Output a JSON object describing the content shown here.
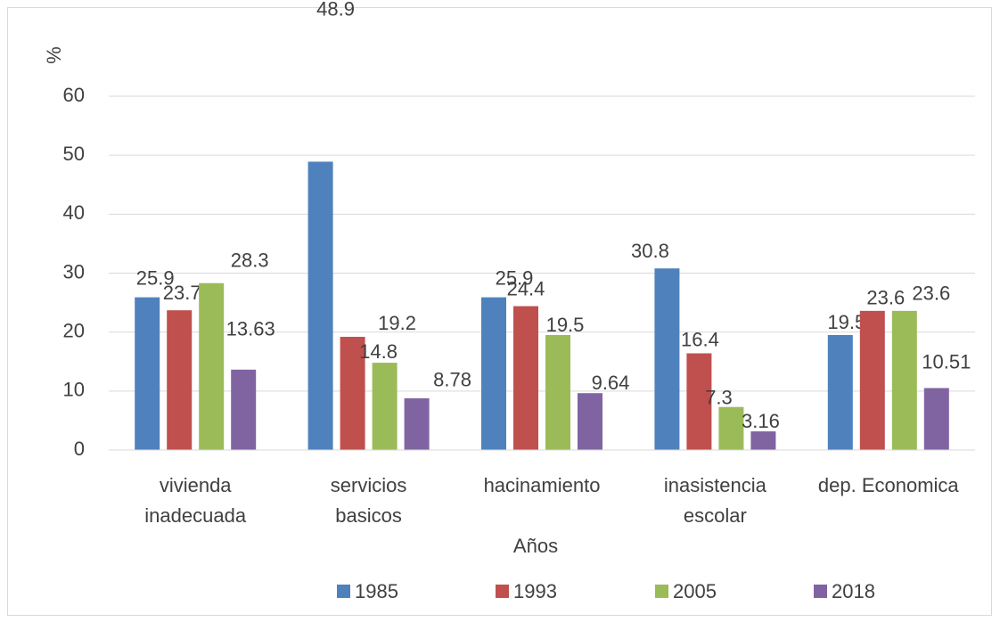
{
  "chart_data": {
    "type": "bar",
    "y_label": "%",
    "x_label": "Años",
    "categories": [
      "vivienda\ninadecuada",
      "servicios\nbasicos",
      "hacinamiento",
      "inasistencia\nescolar",
      "dep. Economica"
    ],
    "series": [
      {
        "name": "1985",
        "color": "#4f81bd",
        "values": [
          25.9,
          48.9,
          25.9,
          30.8,
          19.5
        ]
      },
      {
        "name": "1993",
        "color": "#c0504d",
        "values": [
          23.7,
          19.2,
          24.4,
          16.4,
          23.6
        ]
      },
      {
        "name": "2005",
        "color": "#9bbb59",
        "values": [
          28.3,
          14.8,
          19.5,
          7.3,
          23.6
        ]
      },
      {
        "name": "2018",
        "color": "#8064a2",
        "values": [
          13.63,
          8.78,
          9.64,
          3.16,
          10.51
        ]
      }
    ],
    "ylim": [
      0,
      60
    ],
    "yticks": [
      0,
      10,
      20,
      30,
      40,
      50,
      60
    ],
    "grid": true,
    "legend": "bottom"
  }
}
